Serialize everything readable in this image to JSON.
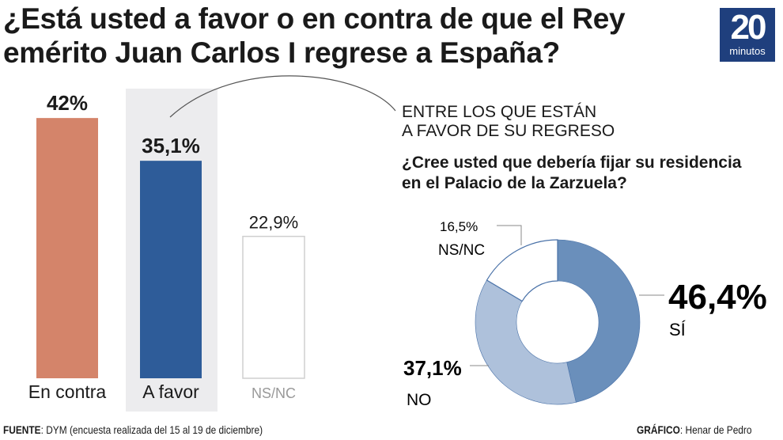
{
  "title": "¿Está usted a favor o en contra de que el Rey emérito Juan Carlos I regrese a España?",
  "logo": {
    "number": "20",
    "word": "minutos"
  },
  "colors": {
    "en_contra": "#d4846a",
    "a_favor": "#2e5c99",
    "highlight_bg": "#ececee",
    "si": "#6a8fbb",
    "no": "#aec1db",
    "nsnc": "#ffffff",
    "logo": "#1f3f7d"
  },
  "chart_data": [
    {
      "type": "bar",
      "categories": [
        "En contra",
        "A favor",
        "NS/NC"
      ],
      "values": [
        42,
        35.1,
        22.9
      ],
      "data_labels": [
        "42%",
        "35,1%",
        "22,9%"
      ],
      "highlighted": "A favor"
    },
    {
      "type": "pie",
      "donut": true,
      "subtitle_caps": "ENTRE LOS QUE ESTÁN A FAVOR DE SU REGRESO",
      "title": "¿Cree usted que debería fijar su residencia en el Palacio de la Zarzuela?",
      "categories": [
        "SÍ",
        "NO",
        "NS/NC"
      ],
      "values": [
        46.4,
        37.1,
        16.5
      ],
      "data_labels": [
        "46,4%",
        "37,1%",
        "16,5%"
      ]
    }
  ],
  "subtitle_line1": "ENTRE LOS QUE ESTÁN",
  "subtitle_line2": "A FAVOR DE SU REGRESO",
  "question_line1": "¿Cree usted que debería fijar su residencia",
  "question_line2": "en el Palacio de la Zarzuela?",
  "footer": {
    "source_label": "FUENTE",
    "source": ": DYM (encuesta realizada del 15 al 19 de diciembre)",
    "credit_label": "GRÁFICO",
    "credit": ": Henar de Pedro"
  }
}
